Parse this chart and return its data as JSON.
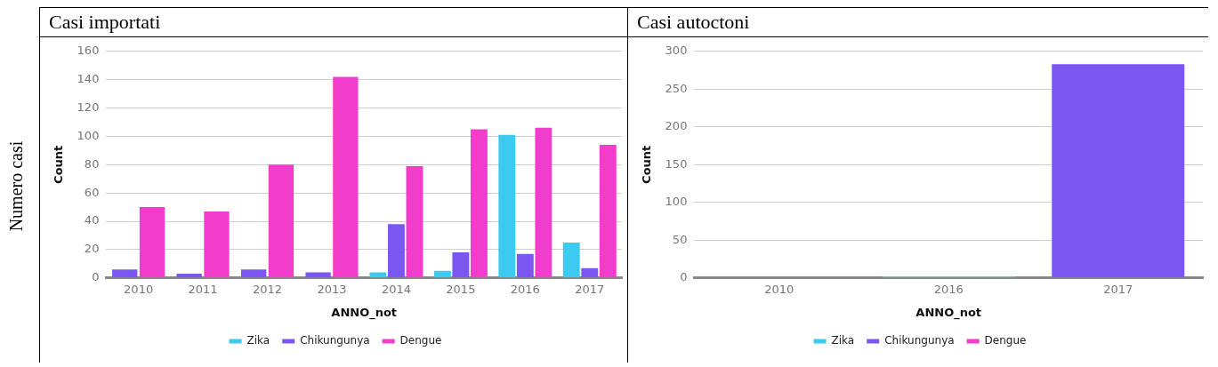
{
  "chart_data": [
    {
      "type": "bar",
      "title": "Casi importati",
      "xlabel": "ANNO_not",
      "ylabel": "Count",
      "annotations": [
        "Numero casi"
      ],
      "categories": [
        "2010",
        "2011",
        "2012",
        "2013",
        "2014",
        "2015",
        "2016",
        "2017"
      ],
      "series": [
        {
          "name": "Zika",
          "color": "#3ec9f0",
          "values": [
            null,
            null,
            null,
            null,
            4,
            5,
            101,
            25
          ]
        },
        {
          "name": "Chikungunya",
          "color": "#7b57f2",
          "values": [
            6,
            3,
            6,
            4,
            38,
            18,
            17,
            7
          ]
        },
        {
          "name": "Dengue",
          "color": "#f23ccc",
          "values": [
            50,
            47,
            80,
            142,
            79,
            105,
            106,
            94
          ]
        }
      ],
      "ylim": [
        0,
        160
      ],
      "yticks": [
        0,
        20,
        40,
        60,
        80,
        100,
        120,
        140,
        160
      ],
      "grid": "y",
      "legend": "bottom"
    },
    {
      "type": "bar",
      "title": "Casi autoctoni",
      "xlabel": "ANNO_not",
      "ylabel": "Count",
      "categories": [
        "2010",
        "2016",
        "2017"
      ],
      "series": [
        {
          "name": "Zika",
          "color": "#3ec9f0",
          "values": [
            null,
            2,
            null
          ]
        },
        {
          "name": "Chikungunya",
          "color": "#7b57f2",
          "values": [
            null,
            null,
            283
          ]
        },
        {
          "name": "Dengue",
          "color": "#f23ccc",
          "values": [
            null,
            null,
            null
          ]
        }
      ],
      "ylim": [
        0,
        300
      ],
      "yticks": [
        0,
        50,
        100,
        150,
        200,
        250,
        300
      ],
      "grid": "y",
      "legend": "bottom"
    }
  ]
}
